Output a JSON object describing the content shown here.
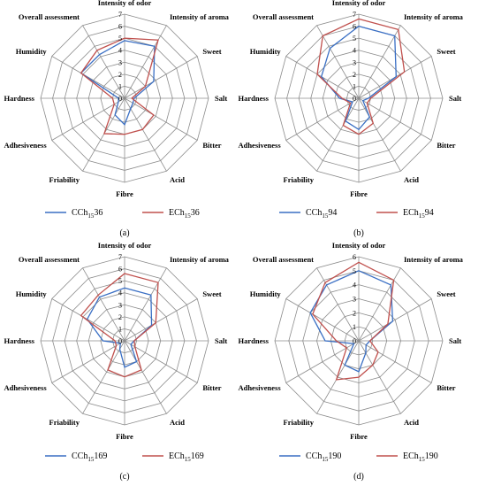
{
  "figure": {
    "panels": [
      {
        "id": "a",
        "label": "(a)",
        "legend": [
          {
            "prefix": "CCh",
            "sub": "15",
            "suffix": "36"
          },
          {
            "prefix": "ECh",
            "sub": "15",
            "suffix": "36"
          }
        ]
      },
      {
        "id": "b",
        "label": "(b)",
        "legend": [
          {
            "prefix": "CCh",
            "sub": "15",
            "suffix": "94"
          },
          {
            "prefix": "ECh",
            "sub": "15",
            "suffix": "94"
          }
        ]
      },
      {
        "id": "c",
        "label": "(c)",
        "legend": [
          {
            "prefix": "CCh",
            "sub": "15",
            "suffix": "169"
          },
          {
            "prefix": "ECh",
            "sub": "15",
            "suffix": "169"
          }
        ]
      },
      {
        "id": "d",
        "label": "(d)",
        "legend": [
          {
            "prefix": "CCh",
            "sub": "15",
            "suffix": "190"
          },
          {
            "prefix": "ECh",
            "sub": "15",
            "suffix": "190"
          }
        ]
      }
    ]
  },
  "chart_data": [
    {
      "type": "radar",
      "categories": [
        "Intensity of odor",
        "Intensity of aroma",
        "Sweet",
        "Salt",
        "Bitter",
        "Acid",
        "Fibre",
        "Friability",
        "Adhesiveness",
        "Hardness",
        "Humidity",
        "Overall assessment"
      ],
      "rlim": [
        0,
        7
      ],
      "ticks": [
        "0",
        "1",
        "2",
        "3",
        "4",
        "5",
        "6",
        "7"
      ],
      "grid": true,
      "legend_position": "bottom",
      "series": [
        {
          "name": "CCh15 36",
          "color": "#3a6fc4",
          "values": [
            4.8,
            5.0,
            2.8,
            0.8,
            0.8,
            1.0,
            2.2,
            1.6,
            0.6,
            0.5,
            4.2,
            4.2
          ]
        },
        {
          "name": "ECh15 36",
          "color": "#c0504d",
          "values": [
            5.0,
            5.6,
            2.0,
            0.6,
            2.8,
            3.0,
            3.0,
            3.4,
            1.0,
            1.0,
            4.2,
            4.6
          ]
        }
      ]
    },
    {
      "type": "radar",
      "categories": [
        "Intensity of odor",
        "Intensity of aroma",
        "Sweet",
        "Salt",
        "Bitter",
        "Acid",
        "Fibre",
        "Friability",
        "Adhesiveness",
        "Hardness",
        "Humidity",
        "Overall assessment"
      ],
      "rlim": [
        0,
        7
      ],
      "ticks": [
        "0",
        "1",
        "2",
        "3",
        "4",
        "5",
        "6",
        "7"
      ],
      "grid": true,
      "legend_position": "bottom",
      "series": [
        {
          "name": "CCh15 94",
          "color": "#3a6fc4",
          "values": [
            6.0,
            6.0,
            3.6,
            0.8,
            0.4,
            1.8,
            2.6,
            2.2,
            0.6,
            1.6,
            3.6,
            4.8
          ]
        },
        {
          "name": "ECh15 94",
          "color": "#c0504d",
          "values": [
            6.6,
            6.6,
            4.4,
            1.0,
            0.8,
            2.4,
            3.0,
            2.6,
            0.8,
            1.4,
            4.0,
            6.0
          ]
        }
      ]
    },
    {
      "type": "radar",
      "categories": [
        "Intensity of odor",
        "Intensity of aroma",
        "Sweet",
        "Salt",
        "Bitter",
        "Acid",
        "Fibre",
        "Friability",
        "Adhesiveness",
        "Hardness",
        "Humidity",
        "Overall assessment"
      ],
      "rlim": [
        0,
        7
      ],
      "ticks": [
        "0",
        "1",
        "2",
        "3",
        "4",
        "5",
        "6",
        "7"
      ],
      "grid": true,
      "legend_position": "bottom",
      "series": [
        {
          "name": "CCh15 169",
          "color": "#3a6fc4",
          "values": [
            4.4,
            4.4,
            2.6,
            0.8,
            0.6,
            2.0,
            2.2,
            0.8,
            0.4,
            1.8,
            3.6,
            4.2
          ]
        },
        {
          "name": "ECh15 169",
          "color": "#c0504d",
          "values": [
            5.6,
            5.6,
            3.0,
            0.8,
            1.0,
            2.8,
            3.0,
            2.8,
            0.8,
            0.8,
            4.2,
            4.4
          ]
        }
      ]
    },
    {
      "type": "radar",
      "categories": [
        "Intensity of odor",
        "Intensity of aroma",
        "Sweet",
        "Salt",
        "Bitter",
        "Acid",
        "Fibre",
        "Friability",
        "Adhesiveness",
        "Hardness",
        "Humidity",
        "Overall assessment"
      ],
      "rlim": [
        0,
        6
      ],
      "ticks": [
        "0",
        "1",
        "2",
        "3",
        "4",
        "5",
        "6"
      ],
      "grid": true,
      "legend_position": "bottom",
      "series": [
        {
          "name": "CCh15 190",
          "color": "#3a6fc4",
          "values": [
            5.0,
            4.6,
            2.8,
            0.8,
            0.6,
            1.0,
            2.2,
            2.0,
            0.4,
            2.4,
            4.0,
            4.6
          ]
        },
        {
          "name": "ECh15 190",
          "color": "#c0504d",
          "values": [
            5.6,
            5.0,
            2.4,
            0.8,
            1.6,
            2.0,
            2.6,
            3.2,
            1.0,
            1.6,
            3.8,
            4.8
          ]
        }
      ]
    }
  ]
}
